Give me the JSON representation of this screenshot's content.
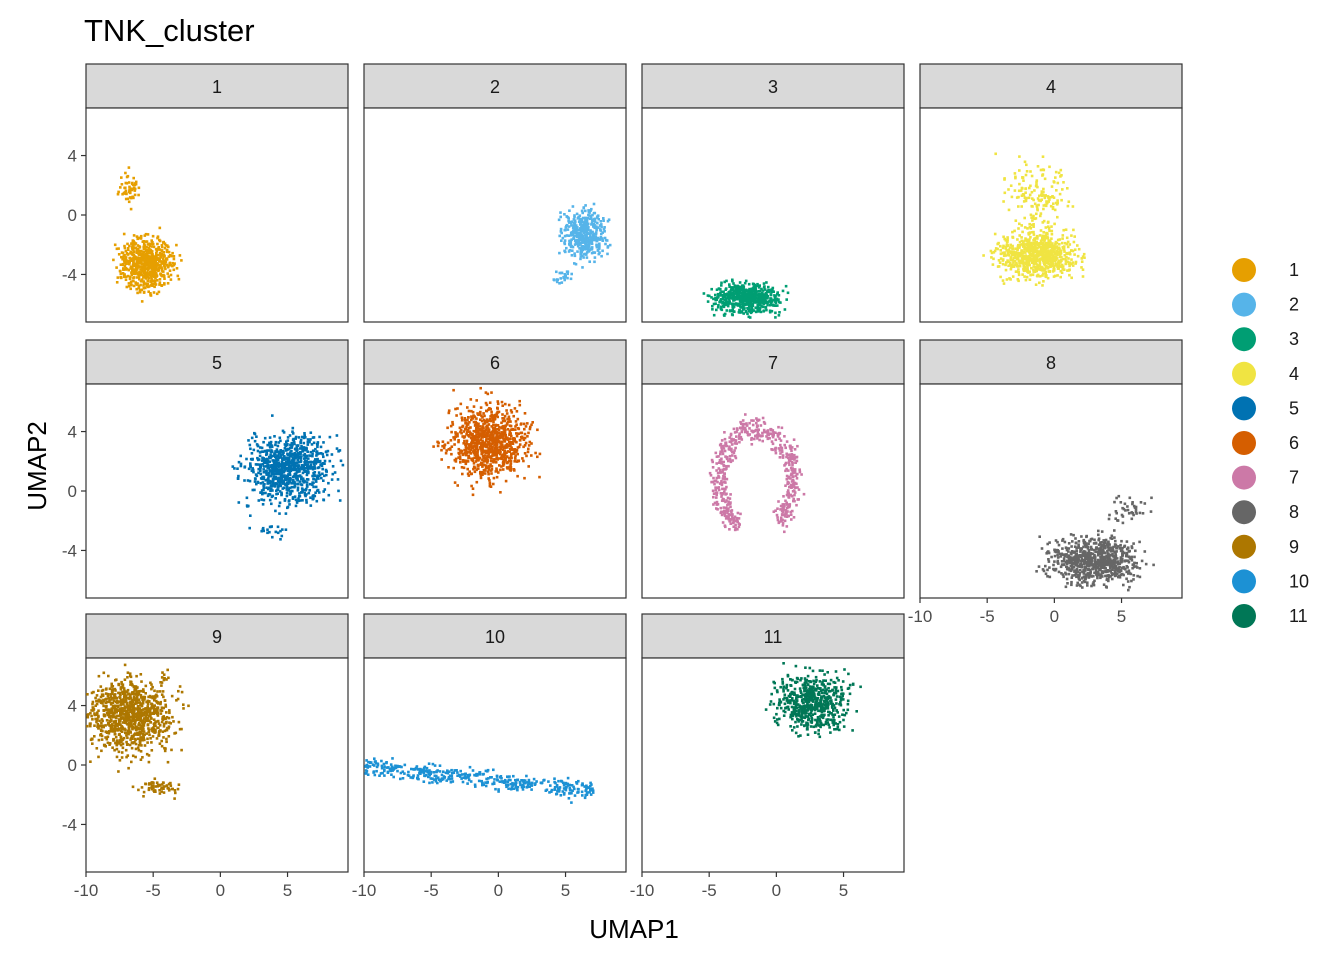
{
  "chart_data": {
    "type": "scatter",
    "title": "TNK_cluster",
    "xlabel": "UMAP1",
    "ylabel": "UMAP2",
    "xlim": [
      -10,
      9.5
    ],
    "ylim": [
      -7.2,
      7.2
    ],
    "x_ticks": [
      -10,
      -5,
      0,
      5
    ],
    "x_tick_labels": [
      "-10",
      "-5",
      "0",
      "5"
    ],
    "y_ticks": [
      -4,
      0,
      4
    ],
    "y_tick_labels": [
      "-4",
      "0",
      "4"
    ],
    "grid": false,
    "legend_position": "right",
    "facets": [
      {
        "label": "1",
        "color": "#E69F00",
        "blobs": [
          {
            "cx": -5.6,
            "cy": -3.2,
            "rx": 2.2,
            "ry": 2.1,
            "n": 650
          },
          {
            "cx": -6.9,
            "cy": 1.8,
            "rx": 0.9,
            "ry": 1.4,
            "n": 55
          }
        ]
      },
      {
        "label": "2",
        "color": "#56B4E9",
        "blobs": [
          {
            "cx": 6.3,
            "cy": -1.2,
            "rx": 2.0,
            "ry": 2.0,
            "n": 450
          },
          {
            "cx": 4.8,
            "cy": -4.1,
            "rx": 0.9,
            "ry": 0.5,
            "n": 25
          }
        ]
      },
      {
        "label": "3",
        "color": "#009E73",
        "blobs": [
          {
            "cx": -2.3,
            "cy": -5.5,
            "rx": 3.0,
            "ry": 1.2,
            "n": 600
          }
        ]
      },
      {
        "label": "4",
        "color": "#F0E442",
        "blobs": [
          {
            "cx": -1.3,
            "cy": -2.6,
            "rx": 3.4,
            "ry": 1.9,
            "n": 750
          },
          {
            "cx": -1.3,
            "cy": 1.4,
            "rx": 3.0,
            "ry": 2.6,
            "n": 160
          }
        ]
      },
      {
        "label": "5",
        "color": "#0072B2",
        "blobs": [
          {
            "cx": 5.0,
            "cy": 1.6,
            "rx": 3.8,
            "ry": 2.8,
            "n": 900
          },
          {
            "cx": 3.6,
            "cy": -2.7,
            "rx": 1.3,
            "ry": 0.6,
            "n": 20
          }
        ]
      },
      {
        "label": "6",
        "color": "#D55E00",
        "blobs": [
          {
            "cx": -0.8,
            "cy": 3.4,
            "rx": 3.4,
            "ry": 3.0,
            "n": 900
          }
        ]
      },
      {
        "label": "7",
        "color": "#CC79A7",
        "arc": true,
        "blobs": [
          {
            "cx": -1.6,
            "cy": 0.8,
            "rx": 3.4,
            "ry": 4.2,
            "n": 550
          }
        ]
      },
      {
        "label": "8",
        "color": "#666666",
        "blobs": [
          {
            "cx": 3.0,
            "cy": -4.6,
            "rx": 3.8,
            "ry": 1.8,
            "n": 800
          },
          {
            "cx": 5.3,
            "cy": -1.2,
            "rx": 2.0,
            "ry": 1.3,
            "n": 40
          }
        ]
      },
      {
        "label": "9",
        "color": "#AD7700",
        "blobs": [
          {
            "cx": -6.8,
            "cy": 3.4,
            "rx": 3.8,
            "ry": 3.0,
            "n": 1000
          },
          {
            "cx": -4.8,
            "cy": -1.4,
            "rx": 1.8,
            "ry": 0.6,
            "n": 60
          }
        ]
      },
      {
        "label": "10",
        "color": "#1C91D4",
        "stream": true,
        "blobs": [
          {
            "cx": -2.0,
            "cy": -0.8,
            "rx": 9.0,
            "ry": 0.7,
            "n": 450
          }
        ]
      },
      {
        "label": "11",
        "color": "#007756",
        "blobs": [
          {
            "cx": 2.6,
            "cy": 4.3,
            "rx": 3.2,
            "ry": 2.3,
            "n": 600
          }
        ]
      }
    ],
    "legend": [
      {
        "label": "1",
        "color": "#E69F00"
      },
      {
        "label": "2",
        "color": "#56B4E9"
      },
      {
        "label": "3",
        "color": "#009E73"
      },
      {
        "label": "4",
        "color": "#F0E442"
      },
      {
        "label": "5",
        "color": "#0072B2"
      },
      {
        "label": "6",
        "color": "#D55E00"
      },
      {
        "label": "7",
        "color": "#CC79A7"
      },
      {
        "label": "8",
        "color": "#666666"
      },
      {
        "label": "9",
        "color": "#AD7700"
      },
      {
        "label": "10",
        "color": "#1C91D4"
      },
      {
        "label": "11",
        "color": "#007756"
      }
    ]
  }
}
